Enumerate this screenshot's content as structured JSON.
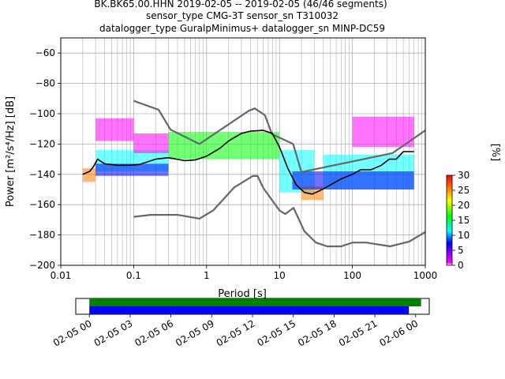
{
  "title_lines": [
    "BK.BK65.00.HHN   2019-02-05 -- 2019-02-05  (46/46 segments)",
    "sensor_type CMG-3T sensor_sn T310032",
    "datalogger_type GuralpMinimus+ datalogger_sn MINP-DC59"
  ],
  "chart_data": [
    {
      "type": "heatmap",
      "xlabel": "Period [s]",
      "ylabel": "Power [m²/s⁴/Hz] [dB]",
      "xscale": "log",
      "xlim": [
        0.01,
        1000
      ],
      "ylim": [
        -200,
        -50
      ],
      "xticks": [
        0.01,
        0.1,
        1,
        10,
        100,
        1000
      ],
      "xtick_labels": [
        "0.01",
        "0.1",
        "1",
        "10",
        "100",
        "1000"
      ],
      "yticks": [
        -200,
        -180,
        -160,
        -140,
        -120,
        -100,
        -80,
        -60
      ],
      "grid": true,
      "colorbar": {
        "label": "[%]",
        "range": [
          0,
          30
        ],
        "ticks": [
          0,
          5,
          10,
          15,
          20,
          25,
          30
        ],
        "colors": [
          "#ffffff",
          "#ff00ff",
          "#0000ff",
          "#00ffff",
          "#00ff00",
          "#ffff00",
          "#ff8000",
          "#ff0000"
        ]
      },
      "noise_model_color": "#666666",
      "high_noise_model": [
        [
          0.1,
          -91.5
        ],
        [
          0.22,
          -97.4
        ],
        [
          0.32,
          -110.5
        ],
        [
          0.8,
          -120
        ],
        [
          3.8,
          -98
        ],
        [
          4.6,
          -96.5
        ],
        [
          6.3,
          -101
        ],
        [
          7.9,
          -113.5
        ],
        [
          15.4,
          -120
        ],
        [
          20,
          -138.5
        ],
        [
          354.8,
          -126
        ],
        [
          1000,
          -111
        ]
      ],
      "low_noise_model": [
        [
          0.1,
          -168
        ],
        [
          0.17,
          -166.7
        ],
        [
          0.4,
          -166.7
        ],
        [
          0.8,
          -169.2
        ],
        [
          1.24,
          -163.7
        ],
        [
          2.4,
          -148.6
        ],
        [
          4.3,
          -141.1
        ],
        [
          5,
          -141.1
        ],
        [
          6,
          -149
        ],
        [
          10,
          -163.8
        ],
        [
          12,
          -166.2
        ],
        [
          15.6,
          -162.1
        ],
        [
          21.9,
          -177.5
        ],
        [
          31.6,
          -185
        ],
        [
          45,
          -187.5
        ],
        [
          70,
          -187.5
        ],
        [
          101,
          -185
        ],
        [
          154,
          -185
        ],
        [
          328,
          -187.5
        ],
        [
          600,
          -184.4
        ],
        [
          1000,
          -178
        ]
      ],
      "mode_line_color": "#000000",
      "mode_line": [
        [
          0.02,
          -140
        ],
        [
          0.025,
          -138
        ],
        [
          0.028,
          -135
        ],
        [
          0.032,
          -130
        ],
        [
          0.04,
          -133
        ],
        [
          0.06,
          -134
        ],
        [
          0.09,
          -134
        ],
        [
          0.12,
          -133.5
        ],
        [
          0.15,
          -132
        ],
        [
          0.2,
          -130
        ],
        [
          0.3,
          -129
        ],
        [
          0.5,
          -131
        ],
        [
          0.7,
          -130.5
        ],
        [
          1,
          -128
        ],
        [
          1.5,
          -123
        ],
        [
          2,
          -118
        ],
        [
          3,
          -113
        ],
        [
          4,
          -111.5
        ],
        [
          6,
          -111
        ],
        [
          8,
          -113
        ],
        [
          10,
          -122
        ],
        [
          13,
          -136
        ],
        [
          17,
          -147
        ],
        [
          22,
          -152
        ],
        [
          28,
          -153
        ],
        [
          35,
          -151
        ],
        [
          50,
          -147
        ],
        [
          70,
          -143
        ],
        [
          100,
          -140
        ],
        [
          130,
          -137
        ],
        [
          180,
          -137
        ],
        [
          250,
          -134
        ],
        [
          320,
          -130
        ],
        [
          400,
          -130
        ],
        [
          500,
          -125
        ],
        [
          700,
          -125
        ]
      ],
      "heat_bands": [
        {
          "x": [
            0.02,
            0.03
          ],
          "y": [
            -145,
            -136
          ],
          "level": 20
        },
        {
          "x": [
            0.03,
            0.3
          ],
          "y": [
            -138,
            -124
          ],
          "level": 10
        },
        {
          "x": [
            0.03,
            0.3
          ],
          "y": [
            -141,
            -133
          ],
          "level": 4
        },
        {
          "x": [
            0.03,
            0.1
          ],
          "y": [
            -118,
            -103
          ],
          "level": 2
        },
        {
          "x": [
            0.1,
            0.3
          ],
          "y": [
            -126,
            -113
          ],
          "level": 2
        },
        {
          "x": [
            0.3,
            10
          ],
          "y": [
            -130,
            -112
          ],
          "level": 12
        },
        {
          "x": [
            10,
            30
          ],
          "y": [
            -152,
            -124
          ],
          "level": 8
        },
        {
          "x": [
            20,
            40
          ],
          "y": [
            -157,
            -148
          ],
          "level": 20
        },
        {
          "x": [
            40,
            700
          ],
          "y": [
            -150,
            -127
          ],
          "level": 8
        },
        {
          "x": [
            15,
            700
          ],
          "y": [
            -150,
            -138
          ],
          "level": 3
        },
        {
          "x": [
            100,
            700
          ],
          "y": [
            -122,
            -102
          ],
          "level": 2
        }
      ]
    },
    {
      "type": "bar",
      "description_free": true,
      "xlim": [
        "02-04 23:00",
        "02-06 01:00"
      ],
      "xticks": [
        "02-05 00",
        "02-05 03",
        "02-05 06",
        "02-05 09",
        "02-05 12",
        "02-05 15",
        "02-05 18",
        "02-05 21",
        "02-06 00"
      ],
      "xtick_hours": [
        0,
        3,
        6,
        9,
        12,
        15,
        18,
        21,
        24
      ],
      "series": [
        {
          "color": "#008000",
          "start_hour": 0,
          "end_hour": 24.4
        },
        {
          "color": "#0000ff",
          "start_hour": 0,
          "end_hour": 23.5
        }
      ]
    }
  ]
}
